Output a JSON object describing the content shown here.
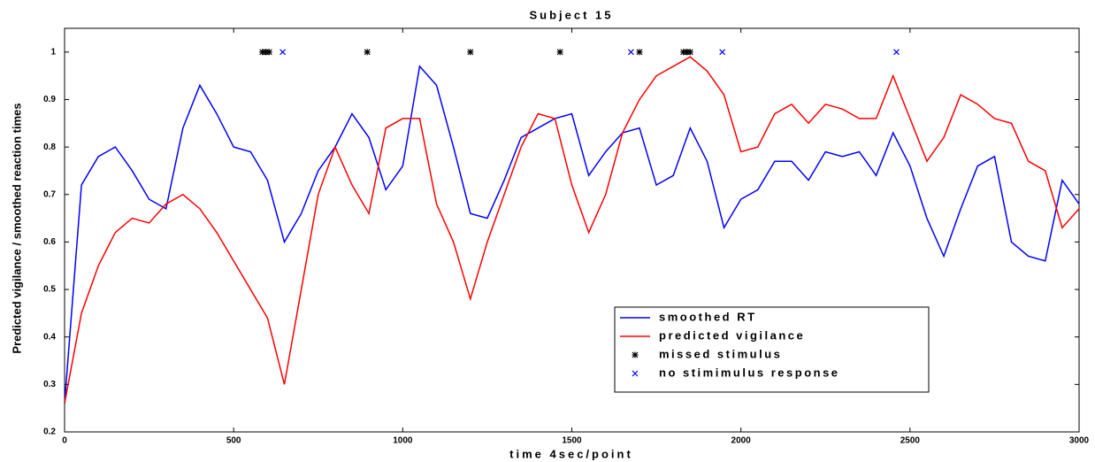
{
  "chart_data": {
    "type": "line",
    "title": "Subject 15",
    "xlabel": "time 4sec/point",
    "ylabel": "Predicted vigilance / smoothed reaction times",
    "xlim": [
      0,
      3000
    ],
    "ylim": [
      0.2,
      1.05
    ],
    "xticks": [
      0,
      500,
      1000,
      1500,
      2000,
      2500,
      3000
    ],
    "yticks": [
      0.2,
      0.3,
      0.4,
      0.5,
      0.6,
      0.7,
      0.8,
      0.9,
      1
    ],
    "x": [
      0,
      50,
      100,
      150,
      200,
      250,
      300,
      350,
      400,
      450,
      500,
      550,
      600,
      650,
      700,
      750,
      800,
      850,
      900,
      950,
      1000,
      1050,
      1100,
      1150,
      1200,
      1250,
      1300,
      1350,
      1400,
      1450,
      1500,
      1550,
      1600,
      1650,
      1700,
      1750,
      1800,
      1850,
      1900,
      1950,
      2000,
      2050,
      2100,
      2150,
      2200,
      2250,
      2300,
      2350,
      2400,
      2450,
      2500,
      2550,
      2600,
      2650,
      2700,
      2750,
      2800,
      2850,
      2900,
      2950,
      3000
    ],
    "series": [
      {
        "name": "smoothed RT",
        "color": "#0000ff",
        "values": [
          0.26,
          0.72,
          0.78,
          0.8,
          0.75,
          0.69,
          0.67,
          0.84,
          0.93,
          0.87,
          0.8,
          0.79,
          0.73,
          0.6,
          0.66,
          0.75,
          0.8,
          0.87,
          0.82,
          0.71,
          0.76,
          0.97,
          0.93,
          0.8,
          0.66,
          0.65,
          0.73,
          0.82,
          0.84,
          0.86,
          0.87,
          0.74,
          0.79,
          0.83,
          0.84,
          0.72,
          0.74,
          0.84,
          0.77,
          0.63,
          0.69,
          0.71,
          0.77,
          0.77,
          0.73,
          0.79,
          0.78,
          0.79,
          0.74,
          0.83,
          0.76,
          0.65,
          0.57,
          0.67,
          0.76,
          0.78,
          0.6,
          0.57,
          0.56,
          0.73,
          0.68
        ]
      },
      {
        "name": "predicted vigilance",
        "color": "#ff0000",
        "values": [
          0.26,
          0.45,
          0.55,
          0.62,
          0.65,
          0.64,
          0.68,
          0.7,
          0.67,
          0.62,
          0.56,
          0.5,
          0.44,
          0.3,
          0.5,
          0.7,
          0.8,
          0.72,
          0.66,
          0.84,
          0.86,
          0.86,
          0.68,
          0.6,
          0.48,
          0.6,
          0.7,
          0.8,
          0.87,
          0.86,
          0.72,
          0.62,
          0.7,
          0.83,
          0.9,
          0.95,
          0.97,
          0.99,
          0.96,
          0.91,
          0.79,
          0.8,
          0.87,
          0.89,
          0.85,
          0.89,
          0.88,
          0.86,
          0.86,
          0.95,
          0.86,
          0.77,
          0.82,
          0.91,
          0.89,
          0.86,
          0.85,
          0.77,
          0.75,
          0.63,
          0.67
        ]
      }
    ],
    "markers": [
      {
        "name": "missed stimulus",
        "color": "#000000",
        "symbol": "*",
        "x": [
          585,
          595,
          605,
          895,
          1200,
          1465,
          1700,
          1830,
          1840,
          1850
        ],
        "y": [
          1,
          1,
          1,
          1,
          1,
          1,
          1,
          1,
          1,
          1
        ]
      },
      {
        "name": "no stimimulus response",
        "color": "#0000ff",
        "symbol": "x",
        "x": [
          645,
          1675,
          1945,
          2460
        ],
        "y": [
          1,
          1,
          1,
          1
        ]
      }
    ]
  }
}
